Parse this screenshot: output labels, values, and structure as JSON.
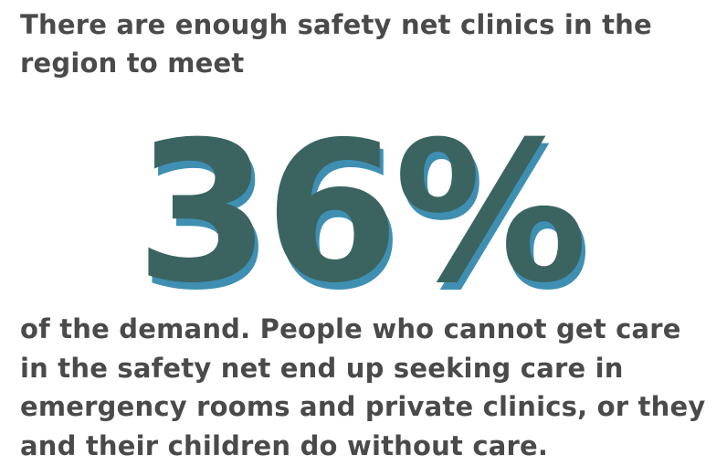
{
  "intro": {
    "line1": "There are enough safety net clinics in the",
    "line2": "region to meet"
  },
  "stat": {
    "value": "36%",
    "color": "#3b6460",
    "shadow_color": "#3f8fb3"
  },
  "body": {
    "line1": " of the demand. People who cannot get care",
    "line2": "in the safety net end up seeking care in",
    "line3": "emergency rooms and private clinics, or they",
    "line4": "and their children do without care."
  }
}
